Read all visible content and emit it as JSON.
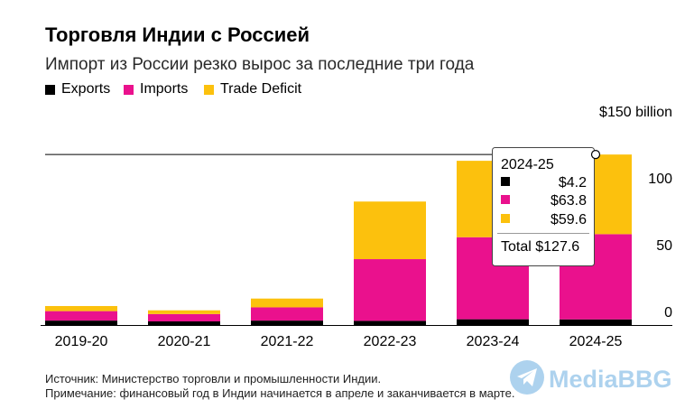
{
  "chart_data": {
    "type": "bar",
    "stacked": true,
    "title": "Торговля Индии с Россией",
    "subtitle": "Импорт из России резко вырос за последние три года",
    "categories": [
      "2019-20",
      "2020-21",
      "2021-22",
      "2022-23",
      "2023-24",
      "2024-25"
    ],
    "series": [
      {
        "name": "Exports",
        "color": "#000000",
        "values": [
          3.3,
          2.7,
          3.3,
          3.1,
          4.3,
          4.2
        ]
      },
      {
        "name": "Imports",
        "color": "#ea118d",
        "values": [
          7.1,
          5.5,
          9.9,
          46.2,
          61.4,
          63.8
        ]
      },
      {
        "name": "Trade Deficit",
        "color": "#fcc10d",
        "values": [
          3.8,
          2.8,
          6.6,
          43.1,
          57.2,
          59.6
        ]
      }
    ],
    "ylim": [
      0,
      150
    ],
    "yticks": [
      0,
      50,
      100,
      150
    ],
    "ytick_labels": [
      "0",
      "50",
      "100",
      "$150 billion"
    ],
    "y_axis_position": "right",
    "legend": "top-left",
    "grid": false,
    "tooltip": {
      "title": "2024-25",
      "values": [
        "$4.2",
        "$63.8",
        "$59.6"
      ],
      "total": "Total $127.6"
    }
  },
  "footer": {
    "source": "Источник: Министерство торговли и промышленности Индии.",
    "note": "Примечание: финансовый год в Индии начинается в апреле и заканчивается в марте."
  },
  "watermark": {
    "text": "MediaBBG",
    "icon": "telegram-icon",
    "color": "#9fcbec"
  }
}
